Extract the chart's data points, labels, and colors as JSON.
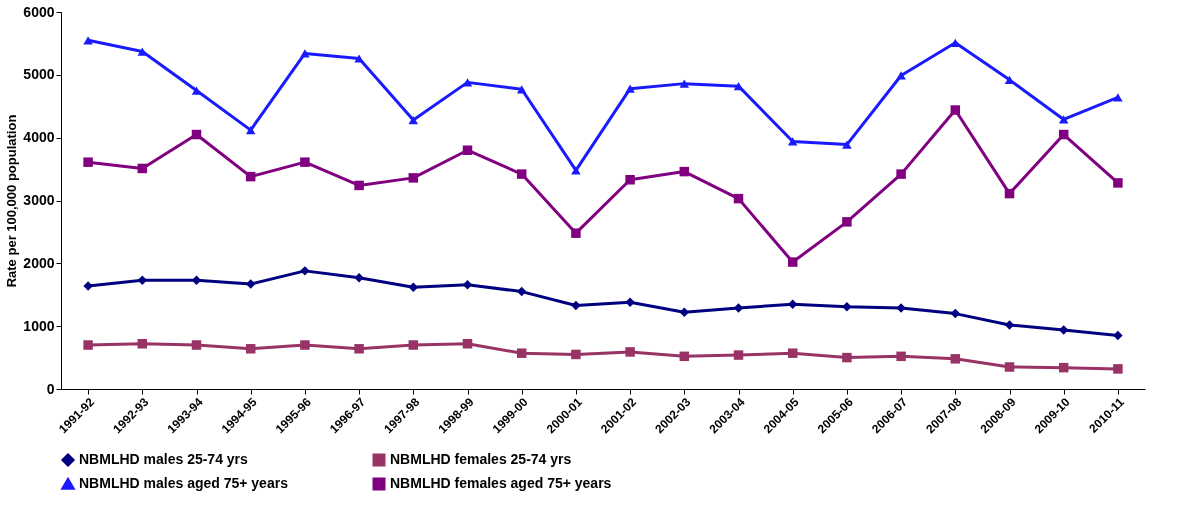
{
  "chart_data": {
    "type": "line",
    "ylabel": "Rate per 100,000 population",
    "categories": [
      "1991-92",
      "1992-93",
      "1993-94",
      "1994-95",
      "1995-96",
      "1996-97",
      "1997-98",
      "1998-99",
      "1999-00",
      "2000-01",
      "2001-02",
      "2002-03",
      "2003-04",
      "2004-05",
      "2005-06",
      "2006-07",
      "2007-08",
      "2008-09",
      "2009-10",
      "2010-11"
    ],
    "series": [
      {
        "name": "NBMLHD males 25-74 yrs",
        "color": "#000080",
        "marker": "diamond",
        "values": [
          1640,
          1730,
          1730,
          1670,
          1880,
          1770,
          1620,
          1660,
          1550,
          1330,
          1380,
          1220,
          1290,
          1350,
          1310,
          1290,
          1200,
          1020,
          940,
          850
        ]
      },
      {
        "name": "NBMLHD females 25-74 yrs",
        "color": "#993366",
        "marker": "square",
        "values": [
          700,
          720,
          700,
          640,
          700,
          640,
          700,
          720,
          570,
          550,
          590,
          520,
          540,
          570,
          500,
          520,
          480,
          350,
          340,
          320
        ]
      },
      {
        "name": "NBMLHD males aged 75+ years",
        "color": "#1a1aff",
        "marker": "triangle",
        "values": [
          5550,
          5370,
          4750,
          4120,
          5340,
          5260,
          4280,
          4880,
          4770,
          3480,
          4780,
          4860,
          4820,
          3940,
          3890,
          4990,
          5510,
          4920,
          4290,
          4640
        ]
      },
      {
        "name": "NBMLHD females aged 75+ years",
        "color": "#800080",
        "marker": "square",
        "values": [
          3610,
          3510,
          4050,
          3380,
          3610,
          3240,
          3360,
          3800,
          3420,
          2480,
          3330,
          3460,
          3030,
          2020,
          2660,
          3420,
          4440,
          3110,
          4050,
          3280
        ]
      }
    ],
    "ylim": [
      0,
      6000
    ],
    "yticks": [
      0,
      1000,
      2000,
      3000,
      4000,
      5000,
      6000
    ],
    "grid": false,
    "legend": "bottom"
  }
}
